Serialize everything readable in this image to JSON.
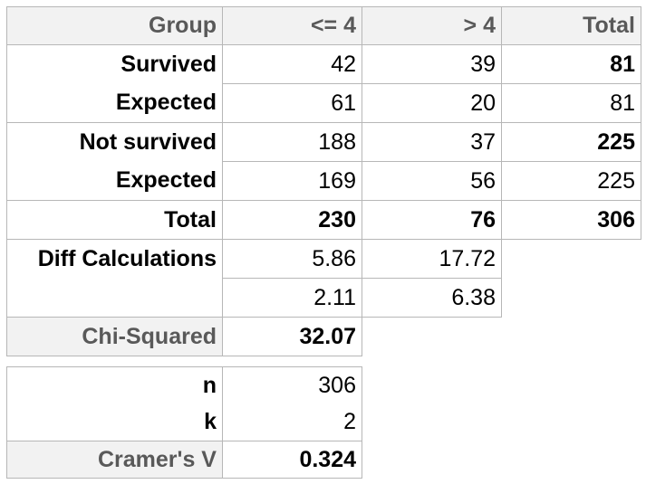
{
  "main": {
    "header": {
      "group": "Group",
      "le4": "<= 4",
      "gt4": "> 4",
      "total": "Total"
    },
    "rows": [
      {
        "label": "Survived",
        "le4": "42",
        "gt4": "39",
        "total": "81"
      },
      {
        "label": "Expected",
        "le4": "61",
        "gt4": "20",
        "total": "81"
      },
      {
        "label": "Not survived",
        "le4": "188",
        "gt4": "37",
        "total": "225"
      },
      {
        "label": "Expected",
        "le4": "169",
        "gt4": "56",
        "total": "225"
      },
      {
        "label": "Total",
        "le4": "230",
        "gt4": "76",
        "total": "306"
      }
    ],
    "diff": {
      "label": "Diff Calculations",
      "row1": {
        "le4": "5.86",
        "gt4": "17.72"
      },
      "row2": {
        "le4": "2.11",
        "gt4": "6.38"
      }
    },
    "chi": {
      "label": "Chi-Squared",
      "value": "32.07"
    }
  },
  "stats": {
    "n": {
      "label": "n",
      "value": "306"
    },
    "k": {
      "label": "k",
      "value": "2"
    },
    "cramer": {
      "label": "Cramer's V",
      "value": "0.324"
    }
  },
  "colors": {
    "border": "#b7b7b7",
    "header_bg": "#f2f2f2",
    "header_text": "#595959"
  }
}
